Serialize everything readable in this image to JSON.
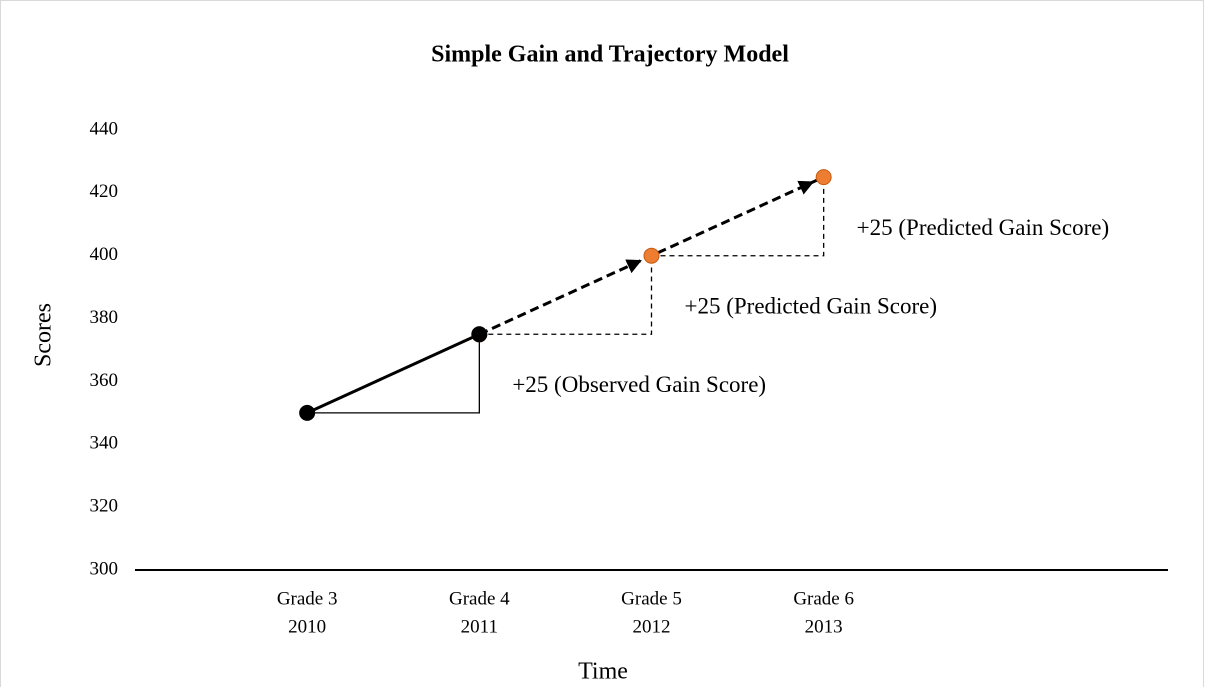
{
  "chart_data": {
    "type": "line",
    "title": "Simple Gain and Trajectory Model",
    "xlabel": "Time",
    "ylabel": "Scores",
    "categories": [
      [
        "Grade 3",
        "2010"
      ],
      [
        "Grade 4",
        "2011"
      ],
      [
        "Grade 5",
        "2012"
      ],
      [
        "Grade 6",
        "2013"
      ]
    ],
    "series": [
      {
        "name": "Observed",
        "color": "#000000",
        "marker_color": "#000000",
        "dashed": false,
        "values": [
          350,
          375,
          null,
          null
        ]
      },
      {
        "name": "Predicted",
        "color": "#000000",
        "marker_color": "#ed7d31",
        "dashed": true,
        "values": [
          null,
          375,
          400,
          425
        ]
      }
    ],
    "annotations": [
      "+25 (Observed Gain Score)",
      "+25 (Predicted Gain Score)",
      "+25 (Predicted Gain Score)"
    ],
    "ylim": [
      300,
      440
    ],
    "yticks": [
      300,
      320,
      340,
      360,
      380,
      400,
      420,
      440
    ],
    "grid": false
  }
}
